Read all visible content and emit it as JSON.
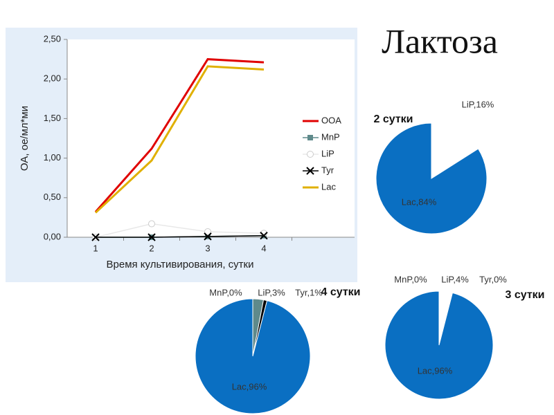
{
  "title": "Лактоза",
  "chart_data": [
    {
      "type": "line",
      "ylabel": "ОА, ое/мл*ми",
      "xlabel": "Время культивирования, сутки",
      "categories": [
        "1",
        "2",
        "3",
        "4"
      ],
      "ylim": [
        0,
        2.5
      ],
      "yticks": [
        {
          "value": 0,
          "label": "0,00"
        },
        {
          "value": 0.5,
          "label": "0,50"
        },
        {
          "value": 1,
          "label": "1,00"
        },
        {
          "value": 1.5,
          "label": "1,50"
        },
        {
          "value": 2,
          "label": "2,00"
        },
        {
          "value": 2.5,
          "label": "2,50"
        }
      ],
      "series": [
        {
          "name": "OOA",
          "color": "#e00000",
          "values": [
            0.32,
            1.12,
            2.25,
            2.21
          ]
        },
        {
          "name": "MnP",
          "color": "#5f8a8b",
          "marker": "square",
          "values": [
            0,
            0,
            0.01,
            0.02
          ]
        },
        {
          "name": "LiP",
          "color": "#e8e8e8",
          "marker": "circle",
          "values": [
            0,
            0.17,
            0.07,
            0.05
          ]
        },
        {
          "name": "Tyr",
          "color": "#000000",
          "marker": "x",
          "values": [
            0,
            0,
            0.01,
            0.02
          ]
        },
        {
          "name": "Lac",
          "color": "#e0b000",
          "values": [
            0.31,
            0.97,
            2.16,
            2.12
          ]
        }
      ]
    },
    {
      "type": "pie",
      "title": "2 сутки",
      "values": [
        16,
        84
      ],
      "value_labels": [
        "LiP,16%",
        "Lac,84%"
      ],
      "colors": [
        "#ffffff",
        "#0a6fc2"
      ]
    },
    {
      "type": "pie",
      "title": "3 сутки",
      "values": [
        0,
        4,
        0,
        96
      ],
      "value_labels": [
        "MnP,0%",
        "LiP,4%",
        "Tyr,0%",
        "Lac,96%"
      ],
      "colors": [
        "#5f8a8b",
        "#ffffff",
        "#000000",
        "#0a6fc2"
      ]
    },
    {
      "type": "pie",
      "title": "4 сутки",
      "values": [
        0,
        3,
        1,
        96
      ],
      "value_labels": [
        "MnP,0%",
        "LiP,3%",
        "Tyr,1%",
        "Lac,96%"
      ],
      "colors": [
        "#5f8a8b",
        "#5f8a8b",
        "#000000",
        "#0a6fc2"
      ]
    }
  ]
}
